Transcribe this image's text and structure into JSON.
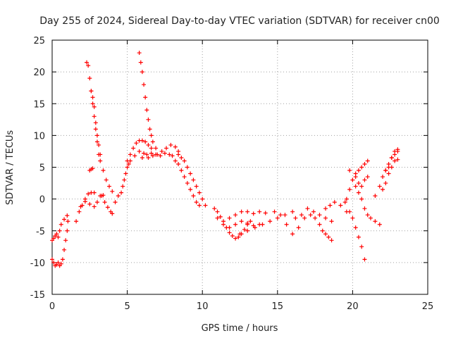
{
  "chart_data": {
    "type": "scatter",
    "title": "Day 255 of 2024, Sidereal Day-to-day VTEC variation (SDTVAR) for receiver cn00",
    "xlabel": "GPS time / hours",
    "ylabel": "SDTVAR / TECUs",
    "xlim": [
      0,
      25
    ],
    "ylim": [
      -15,
      25
    ],
    "xticks": [
      0,
      5,
      10,
      15,
      20,
      25
    ],
    "yticks": [
      -15,
      -10,
      -5,
      0,
      5,
      10,
      15,
      20,
      25
    ],
    "grid": true,
    "marker": "+",
    "color": "#ff0000",
    "series": [
      {
        "name": "trace 1",
        "points": [
          [
            0.0,
            -6.5
          ],
          [
            0.1,
            -6.2
          ],
          [
            0.2,
            -5.8
          ],
          [
            0.3,
            -5.5
          ]
        ]
      },
      {
        "name": "trace 2",
        "points": [
          [
            0.0,
            -9.5
          ],
          [
            0.1,
            -10.0
          ],
          [
            0.2,
            -10.5
          ],
          [
            0.3,
            -10.3
          ],
          [
            0.4,
            -10.0
          ]
        ]
      },
      {
        "name": "trace 3",
        "points": [
          [
            0.5,
            -10.5
          ],
          [
            0.6,
            -10.2
          ],
          [
            0.7,
            -9.5
          ],
          [
            0.8,
            -8.0
          ],
          [
            0.9,
            -6.5
          ],
          [
            1.0,
            -5.0
          ],
          [
            1.05,
            -3.5
          ]
        ]
      },
      {
        "name": "trace 4",
        "points": [
          [
            0.4,
            -6.0
          ],
          [
            0.5,
            -5.0
          ],
          [
            0.6,
            -4.0
          ],
          [
            0.8,
            -3.2
          ],
          [
            1.0,
            -2.6
          ]
        ]
      },
      {
        "name": "trace 5",
        "points": [
          [
            1.6,
            -3.5
          ],
          [
            1.8,
            -2.0
          ],
          [
            2.0,
            -1.0
          ],
          [
            2.2,
            0.0
          ],
          [
            2.4,
            0.8
          ],
          [
            2.6,
            1.0
          ],
          [
            2.8,
            1.0
          ]
        ]
      },
      {
        "name": "trace 6",
        "points": [
          [
            1.9,
            -1.2
          ],
          [
            2.2,
            -0.4
          ],
          [
            2.5,
            -0.8
          ],
          [
            2.8,
            -1.2
          ],
          [
            3.0,
            -0.5
          ],
          [
            3.2,
            0.5
          ],
          [
            3.4,
            0.6
          ]
        ]
      },
      {
        "name": "trace 7",
        "points": [
          [
            3.3,
            0.5
          ],
          [
            3.5,
            -0.5
          ],
          [
            3.7,
            -1.3
          ],
          [
            3.9,
            -2.0
          ],
          [
            4.0,
            -2.3
          ]
        ]
      },
      {
        "name": "trace 8",
        "points": [
          [
            2.3,
            21.5
          ],
          [
            2.4,
            21.0
          ],
          [
            2.5,
            19.0
          ],
          [
            2.6,
            17.0
          ],
          [
            2.7,
            15.0
          ],
          [
            2.8,
            13.0
          ],
          [
            2.9,
            11.0
          ],
          [
            3.0,
            9.0
          ],
          [
            3.1,
            7.0
          ],
          [
            3.2,
            6.0
          ],
          [
            3.4,
            4.5
          ],
          [
            3.6,
            3.0
          ],
          [
            3.8,
            2.0
          ],
          [
            4.0,
            1.2
          ]
        ]
      },
      {
        "name": "trace 9",
        "points": [
          [
            2.6,
            17.0
          ],
          [
            2.7,
            16.0
          ],
          [
            2.8,
            14.5
          ],
          [
            2.9,
            12.0
          ],
          [
            3.0,
            10.0
          ],
          [
            3.1,
            8.5
          ],
          [
            3.2,
            7.0
          ]
        ]
      },
      {
        "name": "trace 10",
        "points": [
          [
            2.5,
            4.5
          ],
          [
            2.6,
            4.7
          ],
          [
            2.7,
            4.8
          ]
        ]
      },
      {
        "name": "trace 11",
        "points": [
          [
            4.2,
            -0.5
          ],
          [
            4.4,
            0.5
          ]
        ]
      },
      {
        "name": "trace 12",
        "points": [
          [
            4.6,
            1.0
          ],
          [
            4.7,
            2.0
          ],
          [
            4.8,
            3.0
          ],
          [
            4.9,
            4.0
          ],
          [
            5.0,
            5.0
          ],
          [
            5.1,
            5.5
          ]
        ]
      },
      {
        "name": "trace 13",
        "points": [
          [
            5.8,
            23.0
          ],
          [
            5.9,
            21.5
          ],
          [
            6.0,
            20.0
          ],
          [
            6.1,
            18.0
          ],
          [
            6.2,
            16.0
          ],
          [
            6.3,
            14.0
          ],
          [
            6.4,
            12.5
          ],
          [
            6.5,
            11.0
          ],
          [
            6.6,
            10.0
          ],
          [
            6.7,
            9.0
          ],
          [
            6.9,
            8.0
          ]
        ]
      },
      {
        "name": "trace 14",
        "points": [
          [
            5.0,
            6.0
          ],
          [
            5.2,
            7.0
          ],
          [
            5.4,
            8.0
          ],
          [
            5.6,
            8.8
          ],
          [
            5.8,
            9.2
          ],
          [
            6.0,
            9.2
          ],
          [
            6.2,
            9.0
          ],
          [
            6.4,
            8.5
          ],
          [
            6.6,
            8.0
          ]
        ]
      },
      {
        "name": "trace 15",
        "points": [
          [
            5.2,
            6.0
          ],
          [
            5.5,
            6.8
          ],
          [
            5.8,
            7.5
          ],
          [
            6.1,
            7.2
          ],
          [
            6.4,
            6.5
          ],
          [
            6.7,
            6.8
          ],
          [
            7.0,
            7.0
          ],
          [
            7.3,
            7.5
          ],
          [
            7.6,
            8.0
          ],
          [
            7.9,
            8.5
          ],
          [
            8.2,
            8.2
          ],
          [
            8.4,
            7.5
          ]
        ]
      },
      {
        "name": "trace 16",
        "points": [
          [
            6.0,
            6.5
          ],
          [
            6.3,
            7.0
          ],
          [
            6.6,
            7.2
          ],
          [
            6.9,
            7.0
          ],
          [
            7.2,
            6.8
          ],
          [
            7.5,
            7.2
          ],
          [
            7.8,
            7.0
          ],
          [
            8.0,
            6.8
          ]
        ]
      },
      {
        "name": "trace 17",
        "points": [
          [
            8.4,
            7.0
          ],
          [
            8.6,
            6.5
          ],
          [
            8.8,
            6.0
          ],
          [
            9.0,
            5.0
          ],
          [
            9.2,
            4.0
          ],
          [
            9.4,
            3.0
          ],
          [
            9.6,
            2.0
          ],
          [
            9.8,
            1.0
          ],
          [
            10.0,
            0.0
          ],
          [
            10.2,
            -1.0
          ]
        ]
      },
      {
        "name": "trace 18",
        "points": [
          [
            8.2,
            6.0
          ],
          [
            8.4,
            5.5
          ],
          [
            8.6,
            4.5
          ],
          [
            8.8,
            3.5
          ],
          [
            9.0,
            2.5
          ],
          [
            9.2,
            1.5
          ],
          [
            9.4,
            0.5
          ],
          [
            9.6,
            -0.5
          ],
          [
            9.8,
            -1.0
          ]
        ]
      },
      {
        "name": "trace 19",
        "points": [
          [
            10.8,
            -1.5
          ],
          [
            11.0,
            -2.0
          ],
          [
            11.2,
            -2.8
          ],
          [
            11.4,
            -3.5
          ],
          [
            11.6,
            -4.5
          ],
          [
            11.8,
            -5.3
          ],
          [
            12.0,
            -5.8
          ],
          [
            12.2,
            -6.2
          ],
          [
            12.4,
            -6.0
          ],
          [
            12.6,
            -5.5
          ],
          [
            12.8,
            -4.8
          ],
          [
            13.0,
            -4.0
          ],
          [
            13.2,
            -3.5
          ]
        ]
      },
      {
        "name": "trace 20",
        "points": [
          [
            11.0,
            -3.0
          ],
          [
            11.4,
            -4.0
          ],
          [
            11.8,
            -4.5
          ],
          [
            12.2,
            -4.0
          ],
          [
            12.6,
            -3.5
          ],
          [
            13.0,
            -3.8
          ],
          [
            13.4,
            -4.2
          ],
          [
            13.8,
            -4.0
          ]
        ]
      },
      {
        "name": "trace 21",
        "points": [
          [
            11.8,
            -3.0
          ],
          [
            12.2,
            -2.5
          ],
          [
            12.6,
            -2.0
          ],
          [
            13.0,
            -2.0
          ],
          [
            13.4,
            -2.3
          ],
          [
            13.8,
            -2.0
          ],
          [
            14.2,
            -2.2
          ]
        ]
      },
      {
        "name": "trace 22",
        "points": [
          [
            12.5,
            -5.5
          ],
          [
            13.0,
            -5.0
          ],
          [
            13.5,
            -4.5
          ],
          [
            14.0,
            -4.0
          ],
          [
            14.5,
            -3.5
          ],
          [
            15.0,
            -3.0
          ],
          [
            15.5,
            -2.5
          ],
          [
            16.0,
            -2.0
          ]
        ]
      },
      {
        "name": "trace 23",
        "points": [
          [
            14.8,
            -2.0
          ],
          [
            15.2,
            -2.5
          ],
          [
            15.6,
            -4.0
          ],
          [
            16.0,
            -5.5
          ],
          [
            16.4,
            -4.5
          ],
          [
            16.8,
            -3.0
          ],
          [
            17.2,
            -2.5
          ]
        ]
      },
      {
        "name": "trace 24",
        "points": [
          [
            16.2,
            -3.0
          ],
          [
            16.6,
            -2.5
          ],
          [
            17.0,
            -1.5
          ],
          [
            17.4,
            -2.0
          ],
          [
            17.8,
            -2.5
          ],
          [
            18.2,
            -3.0
          ],
          [
            18.6,
            -3.5
          ]
        ]
      },
      {
        "name": "trace 25",
        "points": [
          [
            17.5,
            -3.0
          ],
          [
            17.8,
            -4.0
          ],
          [
            18.0,
            -5.0
          ],
          [
            18.2,
            -5.5
          ],
          [
            18.4,
            -6.0
          ],
          [
            18.6,
            -6.5
          ]
        ]
      },
      {
        "name": "trace 26",
        "points": [
          [
            18.2,
            -1.5
          ],
          [
            18.5,
            -1.0
          ],
          [
            18.8,
            -0.5
          ],
          [
            19.2,
            -1.0
          ],
          [
            19.6,
            -2.0
          ]
        ]
      },
      {
        "name": "trace 27",
        "points": [
          [
            19.6,
            0.0
          ],
          [
            19.8,
            1.5
          ],
          [
            20.0,
            3.0
          ],
          [
            20.2,
            4.0
          ],
          [
            20.4,
            4.5
          ],
          [
            20.6,
            5.0
          ],
          [
            20.8,
            5.5
          ],
          [
            21.0,
            6.0
          ]
        ]
      },
      {
        "name": "trace 28",
        "points": [
          [
            19.8,
            4.5
          ],
          [
            20.0,
            3.0
          ],
          [
            20.2,
            2.0
          ],
          [
            20.4,
            1.0
          ],
          [
            20.6,
            0.0
          ],
          [
            20.8,
            -1.5
          ],
          [
            21.0,
            -2.5
          ]
        ]
      },
      {
        "name": "trace 29",
        "points": [
          [
            19.5,
            -0.5
          ],
          [
            19.8,
            -2.0
          ],
          [
            20.0,
            -3.0
          ],
          [
            20.2,
            -4.5
          ],
          [
            20.4,
            -6.0
          ],
          [
            20.6,
            -7.5
          ],
          [
            20.8,
            -9.5
          ]
        ]
      },
      {
        "name": "trace 30",
        "points": [
          [
            20.2,
            3.5
          ],
          [
            20.4,
            2.5
          ],
          [
            20.6,
            2.0
          ],
          [
            20.8,
            3.0
          ],
          [
            21.0,
            3.5
          ]
        ]
      },
      {
        "name": "trace 31",
        "points": [
          [
            21.2,
            -3.0
          ],
          [
            21.5,
            -3.5
          ],
          [
            21.8,
            -4.0
          ]
        ]
      },
      {
        "name": "trace 32",
        "points": [
          [
            21.5,
            0.5
          ],
          [
            21.8,
            2.0
          ],
          [
            22.0,
            3.5
          ],
          [
            22.2,
            4.5
          ],
          [
            22.4,
            5.5
          ],
          [
            22.6,
            6.5
          ],
          [
            22.8,
            7.5
          ],
          [
            23.0,
            7.8
          ]
        ]
      },
      {
        "name": "trace 33",
        "points": [
          [
            22.0,
            1.5
          ],
          [
            22.2,
            2.5
          ],
          [
            22.4,
            4.0
          ],
          [
            22.6,
            5.0
          ],
          [
            22.8,
            6.0
          ],
          [
            23.0,
            6.2
          ]
        ]
      },
      {
        "name": "trace 34",
        "points": [
          [
            22.2,
            4.5
          ],
          [
            22.4,
            5.0
          ],
          [
            22.6,
            6.5
          ],
          [
            22.8,
            7.0
          ],
          [
            23.0,
            7.5
          ]
        ]
      }
    ]
  }
}
